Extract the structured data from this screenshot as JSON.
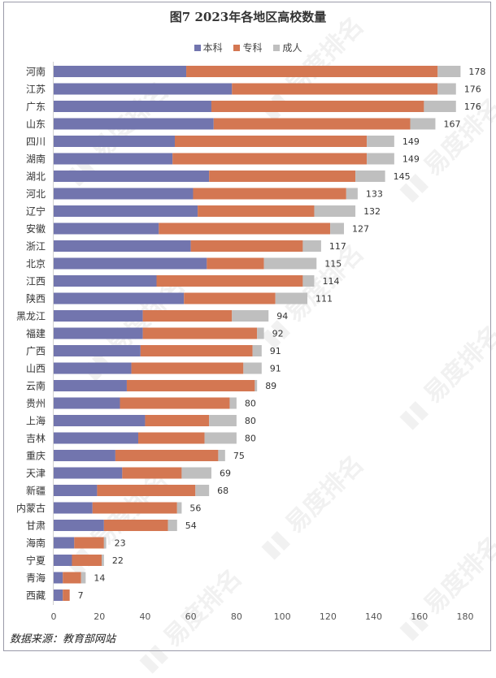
{
  "chart_data": {
    "type": "bar",
    "orientation": "horizontal",
    "stacked": true,
    "title": "图7  2023年各地区高校数量",
    "categories": [
      "河南",
      "江苏",
      "广东",
      "山东",
      "四川",
      "湖南",
      "湖北",
      "河北",
      "辽宁",
      "安徽",
      "浙江",
      "北京",
      "江西",
      "陕西",
      "黑龙江",
      "福建",
      "广西",
      "山西",
      "云南",
      "贵州",
      "上海",
      "吉林",
      "重庆",
      "天津",
      "新疆",
      "内蒙古",
      "甘肃",
      "海南",
      "宁夏",
      "青海",
      "西藏"
    ],
    "series": [
      {
        "name": "本科",
        "color": "#7275AE",
        "values": [
          58,
          78,
          69,
          70,
          53,
          52,
          68,
          61,
          63,
          46,
          60,
          67,
          45,
          57,
          39,
          39,
          38,
          34,
          32,
          29,
          40,
          37,
          27,
          30,
          19,
          17,
          22,
          9,
          8,
          4,
          4
        ]
      },
      {
        "name": "专科",
        "color": "#D47752",
        "values": [
          110,
          90,
          93,
          86,
          84,
          85,
          64,
          67,
          51,
          75,
          49,
          25,
          64,
          40,
          39,
          50,
          49,
          49,
          56,
          48,
          28,
          29,
          45,
          26,
          43,
          37,
          28,
          13,
          13,
          8,
          3
        ]
      },
      {
        "name": "成人",
        "color": "#BFBFBF",
        "values": [
          10,
          8,
          14,
          11,
          12,
          12,
          13,
          5,
          18,
          6,
          8,
          23,
          5,
          14,
          16,
          3,
          4,
          8,
          1,
          3,
          12,
          14,
          3,
          13,
          6,
          2,
          4,
          1,
          1,
          2,
          0
        ]
      }
    ],
    "totals": [
      178,
      176,
      176,
      167,
      149,
      149,
      145,
      133,
      132,
      127,
      117,
      115,
      114,
      111,
      94,
      92,
      91,
      91,
      89,
      80,
      80,
      80,
      75,
      69,
      68,
      56,
      54,
      23,
      22,
      14,
      7
    ],
    "xlim": [
      0,
      180
    ],
    "xticks": [
      0,
      20,
      40,
      60,
      80,
      100,
      120,
      140,
      160,
      180
    ],
    "xlabel": "",
    "ylabel": "",
    "grid": false,
    "legend_position": "top"
  },
  "source": "数据来源：教育部网站",
  "watermark": "易度排名 EDU Ranking.cn"
}
